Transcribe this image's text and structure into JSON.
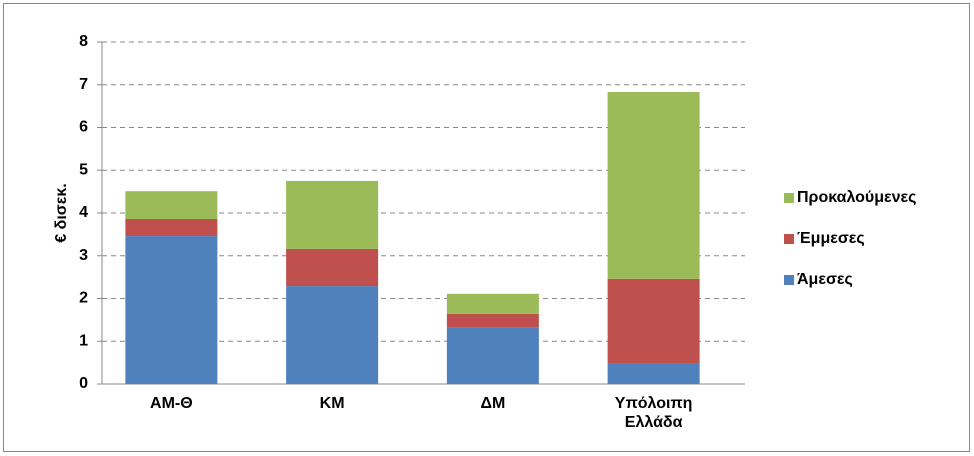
{
  "chart_data": {
    "type": "stacked_bar",
    "y_label": "€ δισεκ.",
    "categories": [
      "ΑΜ-Θ",
      "ΚΜ",
      "ΔΜ",
      "Υπόλοιπη Ελλάδα"
    ],
    "series": [
      {
        "name": "Άμεσες",
        "color": "#4f81bd",
        "values": [
          3.46,
          2.29,
          1.33,
          0.49
        ]
      },
      {
        "name": "Έμμεσες",
        "color": "#c0504d",
        "values": [
          0.4,
          0.87,
          0.31,
          1.97
        ]
      },
      {
        "name": "Προκαλούμενες",
        "color": "#9bbb59",
        "values": [
          0.65,
          1.59,
          0.47,
          4.37
        ]
      }
    ],
    "ylim": [
      0,
      8
    ],
    "yticks": [
      0,
      1,
      2,
      3,
      4,
      5,
      6,
      7,
      8
    ],
    "grid": true,
    "legend": "right"
  }
}
